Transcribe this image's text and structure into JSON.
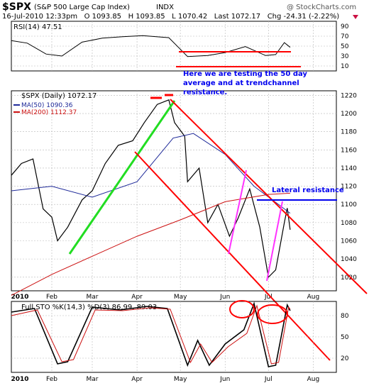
{
  "header": {
    "symbol": "$SPX",
    "name": "(S&P 500 Large Cap Index)",
    "exchange": "INDX",
    "watermark": "@ StockCharts.com",
    "quote_line": "16-Jul-2010 12:33pm   O 1093.85   H 1093.85   L 1070.42   Last 1072.17   Chg -24.31 (-2.22%)"
  },
  "colors": {
    "frame": "#000000",
    "grid": "#b8b8b8",
    "price": "#000000",
    "ma50": "#1f2a99",
    "ma200": "#cc1111",
    "sto_k": "#000000",
    "sto_d": "#cc1111",
    "annotation_red": "#ff0000",
    "annotation_green": "#22dd22",
    "annotation_magenta": "#ff33ff",
    "annotation_blue": "#0000ee",
    "down_arrow": "#cc1144"
  },
  "panels": {
    "rsi": {
      "legend": "RSI(14) 47.51",
      "yticks": [
        "90",
        "70",
        "50",
        "30",
        "10"
      ]
    },
    "price": {
      "legend_price": "$SPX (Daily) 1072.17",
      "legend_ma50": "MA(50) 1090.36",
      "legend_ma200": "MA(200) 1112.37",
      "yticks": [
        "1220",
        "1200",
        "1180",
        "1160",
        "1140",
        "1120",
        "1100",
        "1080",
        "1060",
        "1040",
        "1020"
      ],
      "xlabels": [
        "2010",
        "Feb",
        "Mar",
        "Apr",
        "May",
        "Jun",
        "Jul",
        "Aug"
      ]
    },
    "sto": {
      "legend": "Full STO %K(14,3) %D(3) 86.99, 89.03",
      "yticks": [
        "80",
        "50",
        "20"
      ],
      "xlabels": [
        "2010",
        "Feb",
        "Mar",
        "Apr",
        "May",
        "Jun",
        "Jul",
        "Aug"
      ]
    }
  },
  "annotations": {
    "rsi_note": "Here we are testing the 50 day average and at trendchannel resistance.",
    "lateral": "Lateral resistance"
  },
  "chart_data": [
    {
      "type": "line",
      "title": "RSI(14) 47.51",
      "x_range": [
        "2010-01-04",
        "2010-08-17"
      ],
      "ylim": [
        0,
        100
      ],
      "grid": true,
      "series": [
        {
          "name": "RSI(14)",
          "x": [
            "2010-01-04",
            "2010-01-15",
            "2010-01-28",
            "2010-02-08",
            "2010-02-22",
            "2010-03-08",
            "2010-03-22",
            "2010-04-05",
            "2010-04-23",
            "2010-05-06",
            "2010-05-20",
            "2010-06-01",
            "2010-06-15",
            "2010-06-29",
            "2010-07-06",
            "2010-07-12",
            "2010-07-16"
          ],
          "values": [
            61,
            56,
            34,
            30,
            58,
            66,
            69,
            71,
            67,
            29,
            31,
            37,
            49,
            31,
            33,
            57,
            47.51
          ]
        }
      ]
    },
    {
      "type": "line",
      "title": "$SPX (Daily) 1072.17",
      "x_range": [
        "2010-01-04",
        "2010-08-17"
      ],
      "ylim": [
        1005,
        1225
      ],
      "grid": true,
      "series": [
        {
          "name": "$SPX (Daily)",
          "x": [
            "2010-01-04",
            "2010-01-11",
            "2010-01-19",
            "2010-01-26",
            "2010-02-01",
            "2010-02-05",
            "2010-02-12",
            "2010-02-22",
            "2010-03-01",
            "2010-03-10",
            "2010-03-19",
            "2010-03-29",
            "2010-04-06",
            "2010-04-15",
            "2010-04-23",
            "2010-04-27",
            "2010-05-04",
            "2010-05-06",
            "2010-05-14",
            "2010-05-20",
            "2010-05-27",
            "2010-06-04",
            "2010-06-10",
            "2010-06-18",
            "2010-06-25",
            "2010-07-01",
            "2010-07-06",
            "2010-07-12",
            "2010-07-14",
            "2010-07-16"
          ],
          "values": [
            1132,
            1145,
            1150,
            1095,
            1086,
            1060,
            1075,
            1105,
            1115,
            1145,
            1165,
            1170,
            1190,
            1210,
            1215,
            1190,
            1175,
            1125,
            1140,
            1080,
            1100,
            1065,
            1085,
            1117,
            1075,
            1020,
            1028,
            1080,
            1096,
            1072.17
          ]
        },
        {
          "name": "MA(50)",
          "x": [
            "2010-01-04",
            "2010-02-01",
            "2010-03-01",
            "2010-04-01",
            "2010-04-26",
            "2010-05-10",
            "2010-06-01",
            "2010-06-21",
            "2010-07-16"
          ],
          "values": [
            1115,
            1120,
            1108,
            1125,
            1173,
            1178,
            1155,
            1120,
            1090.36
          ]
        },
        {
          "name": "MA(200)",
          "x": [
            "2010-01-04",
            "2010-02-01",
            "2010-03-01",
            "2010-04-01",
            "2010-05-01",
            "2010-06-01",
            "2010-07-01",
            "2010-07-16"
          ],
          "values": [
            1000,
            1023,
            1043,
            1065,
            1083,
            1103,
            1111,
            1112.37
          ]
        }
      ]
    },
    {
      "type": "line",
      "title": "Full STO %K(14,3) %D(3) 86.99, 89.03",
      "x_range": [
        "2010-01-04",
        "2010-08-17"
      ],
      "ylim": [
        0,
        100
      ],
      "grid": true,
      "series": [
        {
          "name": "%K",
          "x": [
            "2010-01-04",
            "2010-01-20",
            "2010-02-05",
            "2010-02-12",
            "2010-03-01",
            "2010-03-20",
            "2010-04-08",
            "2010-04-22",
            "2010-05-06",
            "2010-05-13",
            "2010-05-21",
            "2010-06-01",
            "2010-06-14",
            "2010-06-21",
            "2010-07-01",
            "2010-07-06",
            "2010-07-14",
            "2010-07-16"
          ],
          "values": [
            85,
            90,
            12,
            15,
            92,
            88,
            93,
            90,
            10,
            45,
            10,
            40,
            60,
            97,
            8,
            10,
            95,
            86.99
          ]
        },
        {
          "name": "%D",
          "x": [
            "2010-01-04",
            "2010-01-22",
            "2010-02-08",
            "2010-02-16",
            "2010-03-03",
            "2010-03-22",
            "2010-04-10",
            "2010-04-24",
            "2010-05-08",
            "2010-05-15",
            "2010-05-23",
            "2010-06-03",
            "2010-06-16",
            "2010-06-23",
            "2010-07-03",
            "2010-07-08",
            "2010-07-15",
            "2010-07-16"
          ],
          "values": [
            80,
            88,
            15,
            18,
            88,
            87,
            91,
            89,
            14,
            40,
            14,
            36,
            55,
            94,
            12,
            14,
            92,
            89.03
          ]
        }
      ]
    }
  ]
}
